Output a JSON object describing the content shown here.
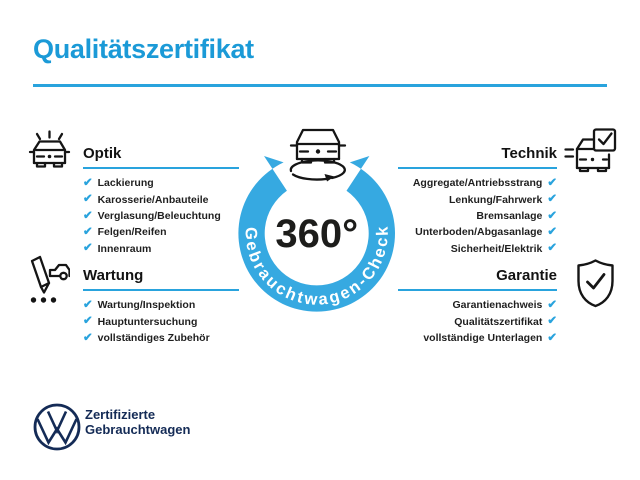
{
  "title": "Qualitätszertifikat",
  "colors": {
    "accent_blue": "#29A3DD",
    "ring_blue": "#36A9E1",
    "title_blue": "#1B9AD7",
    "dark_navy": "#142B56",
    "text_dark": "#1F1F1F"
  },
  "check_glyph": "✔",
  "center": {
    "degree_label": "360°",
    "ring_label": "Gebrauchtwagen-Check",
    "icon": "car-rotation-icon"
  },
  "sections": [
    {
      "id": "optik",
      "label": "Optik",
      "side": "left",
      "icon": "shining-car-icon",
      "items": [
        "Lackierung",
        "Karosserie/Anbauteile",
        "Verglasung/Beleuchtung",
        "Felgen/Reifen",
        "Innenraum"
      ]
    },
    {
      "id": "technik",
      "label": "Technik",
      "side": "right",
      "icon": "car-checkbox-icon",
      "items": [
        "Aggregate/Antriebsstrang",
        "Lenkung/Fahrwerk",
        "Bremsanlage",
        "Unterboden/Abgasanlage",
        "Sicherheit/Elektrik"
      ]
    },
    {
      "id": "wartung",
      "label": "Wartung",
      "side": "left",
      "icon": "service-record-icon",
      "items": [
        "Wartung/Inspektion",
        "Hauptuntersuchung",
        "vollständiges Zubehör"
      ]
    },
    {
      "id": "garantie",
      "label": "Garantie",
      "side": "right",
      "icon": "shield-check-icon",
      "items": [
        "Garantienachweis",
        "Qualitätszertifikat",
        "vollständige Unterlagen"
      ]
    }
  ],
  "footer": {
    "logo": "vw-logo",
    "line1": "Zertifizierte",
    "line2": "Gebrauchtwagen"
  }
}
